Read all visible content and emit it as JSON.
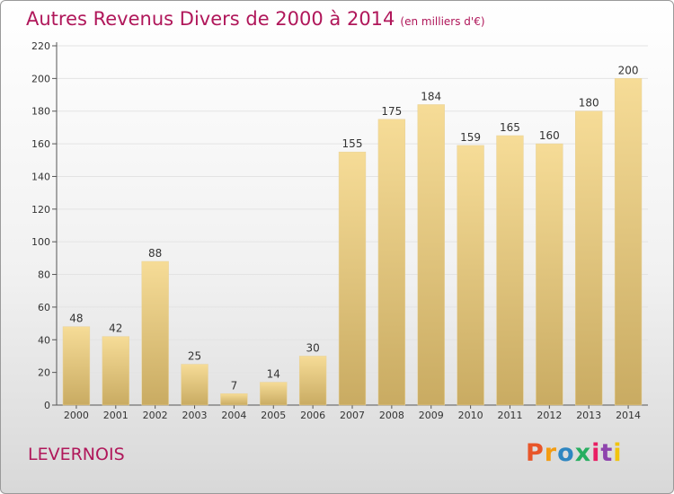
{
  "title": "Autres Revenus Divers de 2000 à 2014",
  "subtitle": "(en milliers d'€)",
  "place": "LEVERNOIS",
  "logo": {
    "letters": [
      "P",
      "r",
      "o",
      "x",
      "i",
      "t",
      "i"
    ],
    "colors": [
      "#e8562a",
      "#f39c12",
      "#2e86c1",
      "#27ae60",
      "#e91e63",
      "#8e44ad",
      "#f1c40f"
    ]
  },
  "colors": {
    "title": "#b0175a",
    "bar_top": "#f6dc97",
    "bar_bottom": "#c9ab62",
    "grid": "#e3e3e3"
  },
  "chart_data": {
    "type": "bar",
    "categories": [
      "2000",
      "2001",
      "2002",
      "2003",
      "2004",
      "2005",
      "2006",
      "2007",
      "2008",
      "2009",
      "2010",
      "2011",
      "2012",
      "2013",
      "2014"
    ],
    "values": [
      48,
      42,
      88,
      25,
      7,
      14,
      30,
      155,
      175,
      184,
      159,
      165,
      160,
      180,
      200
    ],
    "ylim": [
      0,
      220
    ],
    "yticks": [
      0,
      20,
      40,
      60,
      80,
      100,
      120,
      140,
      160,
      180,
      200,
      220
    ],
    "grid": true,
    "xlabel": "",
    "ylabel": ""
  }
}
